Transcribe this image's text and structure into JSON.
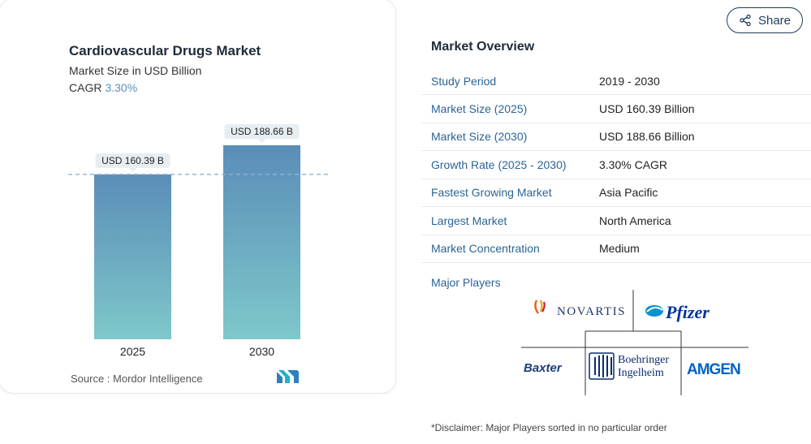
{
  "chart_card": {
    "title": "Cardiovascular Drugs Market",
    "subtitle": "Market Size in USD Billion",
    "cagr_label": "CAGR",
    "cagr_value": "3.30%",
    "source": "Source :  Mordor Intelligence",
    "source_logo": "mordor-intelligence-logo"
  },
  "chart_data": {
    "type": "bar",
    "categories": [
      "2025",
      "2030"
    ],
    "values": [
      160.39,
      188.66
    ],
    "data_labels": [
      "USD 160.39 B",
      "USD 188.66 B"
    ],
    "title": "Cardiovascular Drugs Market",
    "subtitle": "Market Size in USD Billion",
    "reference_line": 160.39,
    "ylim": [
      0,
      188.66
    ],
    "grid": false,
    "colors": {
      "bar_top": "#5b8db8",
      "bar_bottom": "#7ec8ca",
      "label_bg": "#e8edf2",
      "reference_line": "#8fb3cf"
    }
  },
  "share": {
    "label": "Share",
    "icon": "share-icon"
  },
  "overview": {
    "title": "Market Overview",
    "rows": [
      {
        "label": "Study Period",
        "value": "2019 - 2030"
      },
      {
        "label": "Market Size (2025)",
        "value": "USD 160.39 Billion"
      },
      {
        "label": "Market Size (2030)",
        "value": "USD 188.66 Billion"
      },
      {
        "label": "Growth Rate (2025 - 2030)",
        "value": "3.30% CAGR"
      },
      {
        "label": "Fastest Growing Market",
        "value": "Asia Pacific"
      },
      {
        "label": "Largest Market",
        "value": "North America"
      },
      {
        "label": "Market Concentration",
        "value": "Medium"
      }
    ]
  },
  "players": {
    "label": "Major Players",
    "novartis": "NOVARTIS",
    "pfizer": "Pfizer",
    "baxter": "Baxter",
    "boehringer_1": "Boehringer",
    "boehringer_2": "Ingelheim",
    "amgen": "AMGEN"
  },
  "disclaimer": "*Disclaimer: Major Players sorted in no particular order"
}
